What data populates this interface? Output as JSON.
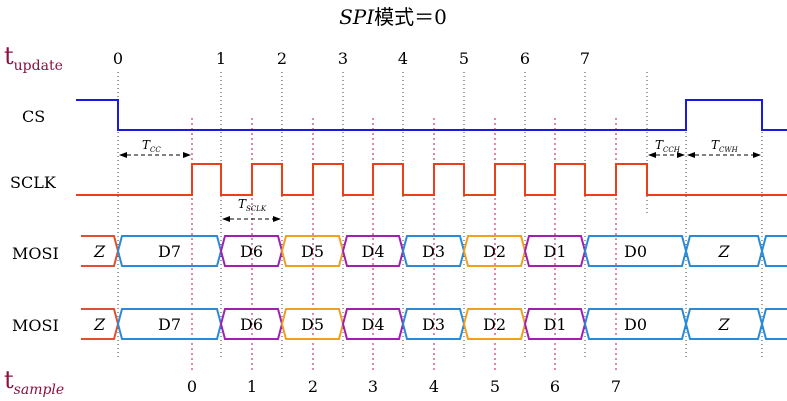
{
  "title": {
    "italic": "SPI",
    "rest": "模式＝0"
  },
  "t_update": {
    "main": "t",
    "sub": "update"
  },
  "t_sample": {
    "main": "t",
    "sub": "sample"
  },
  "update_ticks": [
    "0",
    "1",
    "2",
    "3",
    "4",
    "5",
    "6",
    "7"
  ],
  "sample_ticks": [
    "0",
    "1",
    "2",
    "3",
    "4",
    "5",
    "6",
    "7"
  ],
  "signals": {
    "cs": "CS",
    "sclk": "SCLK",
    "mosi1": "MOSI",
    "mosi2": "MOSI"
  },
  "timings": {
    "tcc": {
      "main": "T",
      "sub": "CC"
    },
    "tsclk": {
      "main": "T",
      "sub": "SCLK"
    },
    "tcch": {
      "main": "T",
      "sub": "CCH"
    },
    "tcwh": {
      "main": "T",
      "sub": "CWH"
    }
  },
  "bus_labels": [
    "Z",
    "D7",
    "D6",
    "D5",
    "D4",
    "D3",
    "D2",
    "D1",
    "D0",
    "Z"
  ],
  "colors": {
    "cs": "#1a1ae0",
    "sclk": "#e8401c",
    "tick_guide": "#c0143c",
    "dim_text": "#8a1040",
    "bus_blue": "#2a8ad8",
    "bus_purple": "#a020b0",
    "bus_orange": "#f0a020",
    "bus_red": "#e05030"
  }
}
